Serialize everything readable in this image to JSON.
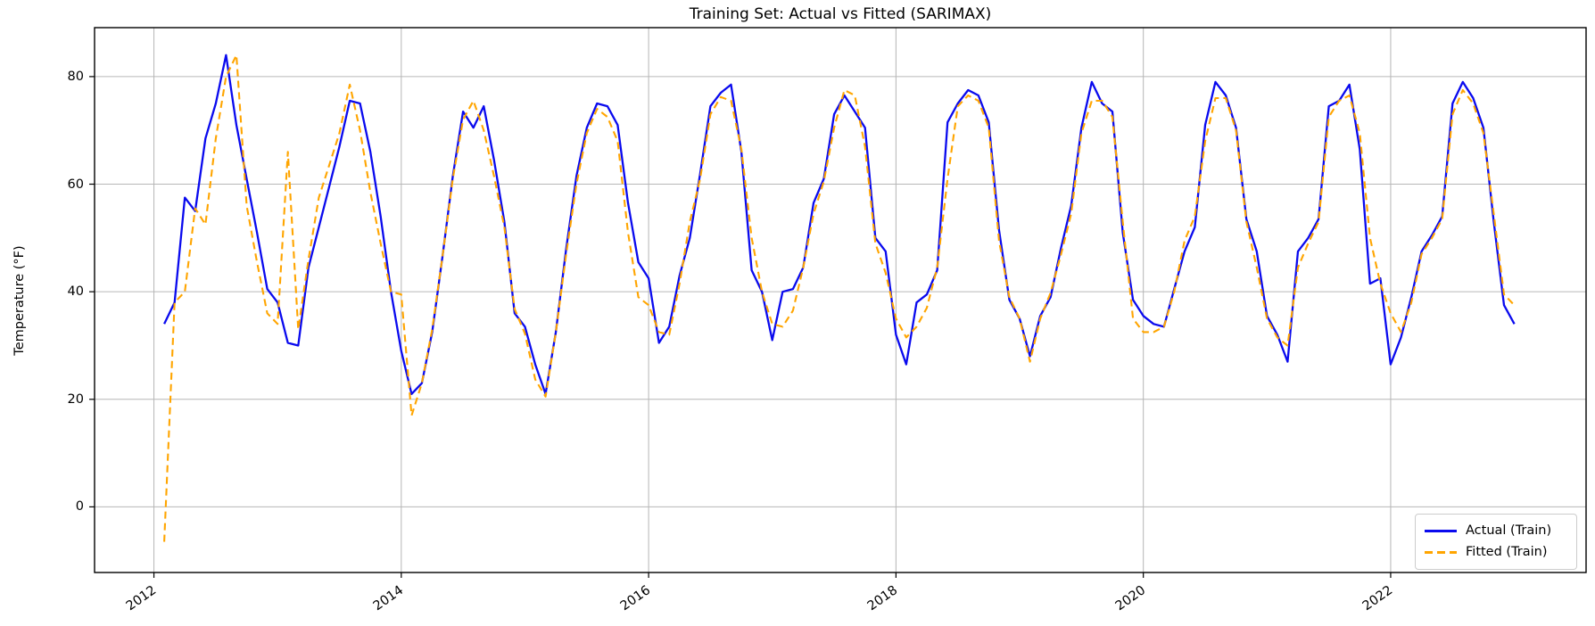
{
  "title": "Training Set: Actual vs Fitted (SARIMAX)",
  "axes": {
    "y_label": "Temperature (°F)",
    "y_tick_labels": [
      "0",
      "20",
      "40",
      "60",
      "80"
    ],
    "x_tick_labels": [
      "2012",
      "2014",
      "2016",
      "2018",
      "2020",
      "2022"
    ]
  },
  "legend": {
    "items": [
      {
        "label": "Actual (Train)",
        "color": "#0a0aee",
        "style": "solid"
      },
      {
        "label": "Fitted (Train)",
        "color": "#ffa500",
        "style": "dashed"
      }
    ]
  },
  "chart_data": {
    "type": "line",
    "title": "Training Set: Actual vs Fitted (SARIMAX)",
    "xlabel": "",
    "ylabel": "Temperature (°F)",
    "x_start": "2012-01",
    "x_frequency": "monthly",
    "n_points": 132,
    "x_tick_years": [
      2012,
      2014,
      2016,
      2018,
      2020,
      2022
    ],
    "y_ticks": [
      0,
      20,
      40,
      60,
      80
    ],
    "xlim_years": [
      2011.52,
      2023.58
    ],
    "ylim": [
      -12.2,
      89.1
    ],
    "grid": true,
    "grid_color": "#b6b6b6",
    "legend_position": "lower right",
    "series": [
      {
        "name": "Actual (Train)",
        "color": "#0a0aee",
        "style": "solid",
        "values": [
          34,
          38,
          57.5,
          55,
          68.5,
          75,
          84,
          71,
          61,
          51,
          40.5,
          38,
          30.5,
          30,
          44.5,
          52,
          59.5,
          67,
          75.5,
          75,
          66,
          54,
          40,
          29,
          21,
          23,
          32.5,
          46.5,
          61.5,
          73.5,
          70.5,
          74.5,
          64.5,
          53,
          36,
          33.5,
          26.5,
          21,
          32.5,
          48,
          61.5,
          70.5,
          75,
          74.5,
          71,
          56.5,
          45.5,
          42.5,
          30.5,
          33.5,
          43,
          50,
          62,
          74.5,
          77,
          78.5,
          66,
          44,
          40,
          31,
          40,
          40.5,
          44.5,
          56.5,
          61,
          73,
          76.5,
          73.5,
          70.5,
          50,
          47.5,
          32,
          26.5,
          38,
          39.5,
          44,
          71.5,
          75,
          77.5,
          76.5,
          71.5,
          51.5,
          38.5,
          35,
          28,
          35.5,
          39,
          48,
          56,
          70.5,
          79,
          75,
          73.5,
          51,
          38.5,
          35.5,
          34,
          33.5,
          40.5,
          47.5,
          52,
          71,
          79,
          76.5,
          70.5,
          53.5,
          47.5,
          35.5,
          32,
          27,
          47.5,
          50,
          53.5,
          74.5,
          75.5,
          78.5,
          66.5,
          41.5,
          42.5,
          26.5,
          31.5,
          39,
          47.5,
          50.5,
          54,
          75,
          79,
          76,
          70.5,
          53,
          37.5,
          34
        ]
      },
      {
        "name": "Fitted (Train)",
        "color": "#ffa500",
        "style": "dashed",
        "values": [
          -6.5,
          38,
          40,
          55.5,
          52.5,
          68.5,
          80,
          84,
          56,
          45.5,
          36,
          34,
          66,
          33,
          46,
          57.5,
          63.5,
          69.5,
          78.5,
          70,
          58.5,
          49,
          40,
          39.5,
          17,
          23,
          33,
          46.5,
          61,
          72,
          75.5,
          70,
          61.5,
          52,
          36.8,
          32.2,
          23.7,
          20.5,
          32.5,
          47,
          60,
          69.5,
          74,
          72.5,
          68,
          51,
          39,
          37.5,
          32.5,
          32,
          41.5,
          53,
          61,
          73,
          76.2,
          75.5,
          66.5,
          50,
          40,
          34,
          33.5,
          36.5,
          44.5,
          54.5,
          60.5,
          70.5,
          77.5,
          76.5,
          67,
          49,
          43.5,
          35,
          31.5,
          33.5,
          37,
          44.5,
          61,
          74.5,
          76.5,
          75.5,
          70.5,
          49.5,
          39,
          35,
          27,
          35,
          39.8,
          46.8,
          54.5,
          69.5,
          75.5,
          75.5,
          72.5,
          53,
          35,
          32.5,
          32.5,
          33.5,
          40,
          49.5,
          54,
          68,
          76,
          76,
          70,
          53,
          44.5,
          35,
          31.5,
          30,
          44.5,
          49,
          53,
          72.5,
          75.5,
          76.5,
          69.5,
          50,
          41.5,
          36,
          32.5,
          38,
          47,
          50,
          53.5,
          73,
          77.5,
          75,
          69.5,
          54.5,
          39.5,
          37.5
        ]
      }
    ]
  }
}
